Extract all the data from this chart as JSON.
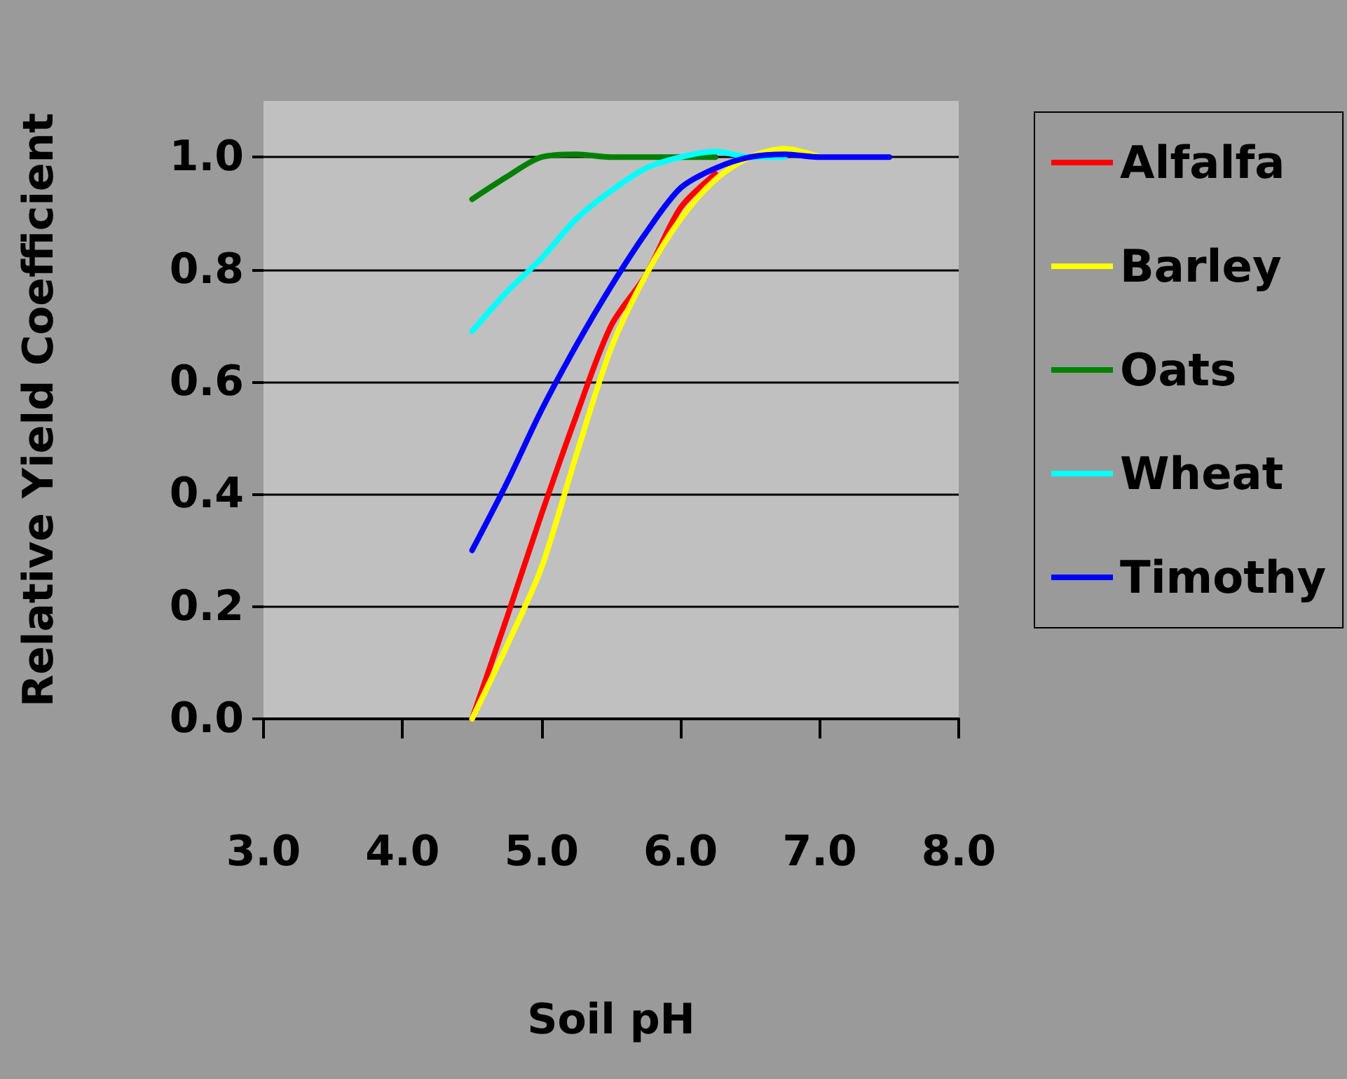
{
  "chart_data": {
    "type": "line",
    "xlabel": "Soil pH",
    "ylabel": "Relative Yield Coefficient",
    "x": [
      4.5,
      4.75,
      5.0,
      5.25,
      5.5,
      5.75,
      6.0,
      6.25,
      6.5,
      6.75,
      7.0,
      7.5
    ],
    "series": [
      {
        "name": "Alfalfa",
        "color": "#ff0000",
        "values": [
          0.0,
          0.18,
          0.365,
          0.54,
          0.7,
          0.79,
          0.91,
          0.97,
          null,
          null,
          null,
          null
        ]
      },
      {
        "name": "Barley",
        "color": "#ffff00",
        "values": [
          0.0,
          0.13,
          0.27,
          0.47,
          0.66,
          0.79,
          0.89,
          0.96,
          1.0,
          1.015,
          1.0,
          null
        ]
      },
      {
        "name": "Oats",
        "color": "#008000",
        "values": [
          0.925,
          0.965,
          1.0,
          1.005,
          1.0,
          1.0,
          1.0,
          1.0,
          null,
          null,
          null,
          null
        ]
      },
      {
        "name": "Wheat",
        "color": "#00ffff",
        "values": [
          0.69,
          0.76,
          0.82,
          0.89,
          0.94,
          0.98,
          1.0,
          1.01,
          1.0,
          1.0,
          null,
          null
        ]
      },
      {
        "name": "Timothy",
        "color": "#0000ff",
        "values": [
          0.3,
          0.42,
          0.55,
          0.665,
          0.77,
          0.865,
          0.945,
          0.98,
          1.0,
          1.005,
          1.0,
          1.0
        ]
      }
    ],
    "xlim": [
      3,
      8
    ],
    "xticks": [
      {
        "value": 3,
        "label": "3.0"
      },
      {
        "value": 4,
        "label": "4.0"
      },
      {
        "value": 5,
        "label": "5.0"
      },
      {
        "value": 6,
        "label": "6.0"
      },
      {
        "value": 7,
        "label": "7.0"
      },
      {
        "value": 8,
        "label": "8.0"
      }
    ],
    "ylim": [
      0,
      1.1
    ],
    "yticks": [
      {
        "value": 0,
        "label": "0.0"
      },
      {
        "value": 0.2,
        "label": "0.2"
      },
      {
        "value": 0.4,
        "label": "0.4"
      },
      {
        "value": 0.6,
        "label": "0.6"
      },
      {
        "value": 0.8,
        "label": "0.8"
      },
      {
        "value": 1,
        "label": "1.0"
      }
    ],
    "grid": "y",
    "legend": "right",
    "marker": "none",
    "line_style": "solid"
  }
}
